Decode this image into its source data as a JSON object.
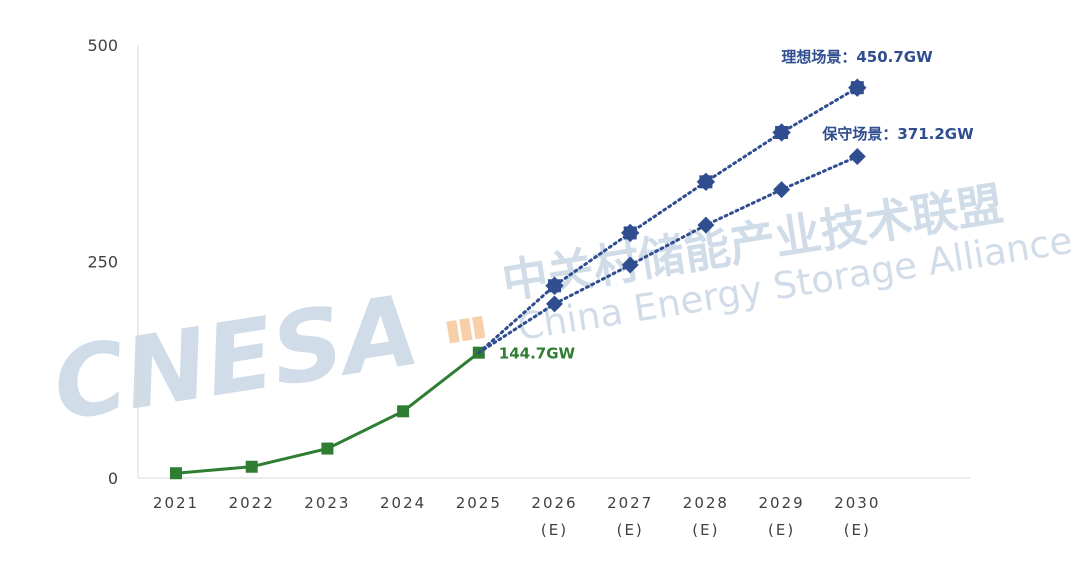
{
  "watermark": {
    "logo": "CNESA",
    "name_cn": "中关村储能产业技术联盟",
    "name_en": "China Energy Storage Alliance"
  },
  "chart_data": {
    "type": "line",
    "categories": [
      "2021",
      "2022",
      "2023",
      "2024",
      "2025",
      "2026",
      "2027",
      "2028",
      "2029",
      "2030"
    ],
    "category_sub": [
      "",
      "",
      "",
      "",
      "",
      "(E)",
      "(E)",
      "(E)",
      "(E)",
      "(E)"
    ],
    "ylim": [
      0,
      500
    ],
    "yticks": [
      0,
      250,
      500
    ],
    "series": [
      {
        "key": "actual",
        "color": "#2e7d32",
        "values": [
          5.5,
          13,
          34,
          77,
          144.7,
          null,
          null,
          null,
          null,
          null
        ]
      },
      {
        "key": "ideal",
        "color": "#2f4d8f",
        "values": [
          null,
          null,
          null,
          null,
          144.7,
          222,
          283,
          342,
          399,
          450.7
        ]
      },
      {
        "key": "conservative",
        "color": "#2f4d8f",
        "values": [
          null,
          null,
          null,
          null,
          144.7,
          201,
          246,
          292,
          333,
          371.2
        ]
      }
    ],
    "annotations": {
      "actual": "144.7GW",
      "ideal": "理想场景：450.7GW",
      "conservative": "保守场景：371.2GW"
    }
  }
}
